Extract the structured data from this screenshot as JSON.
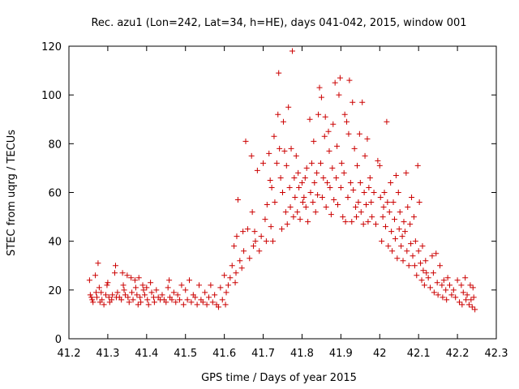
{
  "chart_data": {
    "type": "scatter",
    "title": "Rec. azu1 (Lon=242, Lat=34, h=HE), days 041-042, 2015, window 001",
    "xlabel": "GPS time / Days of year 2015",
    "ylabel": "STEC from uqrg / TECUs",
    "xlim": [
      41.2,
      42.3
    ],
    "ylim": [
      0,
      120
    ],
    "xticks": [
      "41.2",
      "41.3",
      "41.4",
      "41.5",
      "41.6",
      "41.7",
      "41.8",
      "41.9",
      "42",
      "42.1",
      "42.2",
      "42.3"
    ],
    "xtick_values": [
      41.2,
      41.3,
      41.4,
      41.5,
      41.6,
      41.7,
      41.8,
      41.9,
      42.0,
      42.1,
      42.2,
      42.3
    ],
    "yticks": [
      "0",
      "20",
      "40",
      "60",
      "80",
      "100",
      "120"
    ],
    "ytick_values": [
      0,
      20,
      40,
      60,
      80,
      100,
      120
    ],
    "grid": false,
    "marker": "+",
    "color": "#cc0000",
    "series": [
      {
        "points": [
          [
            41.253,
            24
          ],
          [
            41.255,
            18
          ],
          [
            41.258,
            17
          ],
          [
            41.26,
            16
          ],
          [
            41.262,
            15
          ],
          [
            41.268,
            26
          ],
          [
            41.27,
            19
          ],
          [
            41.272,
            17
          ],
          [
            41.275,
            31
          ],
          [
            41.278,
            21
          ],
          [
            41.28,
            15
          ],
          [
            41.283,
            19
          ],
          [
            41.285,
            16
          ],
          [
            41.29,
            14
          ],
          [
            41.295,
            18
          ],
          [
            41.298,
            22
          ],
          [
            41.3,
            23
          ],
          [
            41.303,
            17
          ],
          [
            41.305,
            15
          ],
          [
            41.31,
            16
          ],
          [
            41.312,
            18
          ],
          [
            41.318,
            27
          ],
          [
            41.32,
            30
          ],
          [
            41.322,
            17
          ],
          [
            41.325,
            19
          ],
          [
            41.33,
            17
          ],
          [
            41.335,
            16
          ],
          [
            41.338,
            27
          ],
          [
            41.34,
            22
          ],
          [
            41.342,
            20
          ],
          [
            41.345,
            18
          ],
          [
            41.35,
            26
          ],
          [
            41.352,
            17
          ],
          [
            41.355,
            15
          ],
          [
            41.36,
            25
          ],
          [
            41.362,
            19
          ],
          [
            41.365,
            16
          ],
          [
            41.37,
            24
          ],
          [
            41.372,
            21
          ],
          [
            41.375,
            18
          ],
          [
            41.378,
            14
          ],
          [
            41.38,
            25
          ],
          [
            41.383,
            17
          ],
          [
            41.385,
            15
          ],
          [
            41.39,
            22
          ],
          [
            41.392,
            20
          ],
          [
            41.395,
            18
          ],
          [
            41.4,
            21
          ],
          [
            41.402,
            16
          ],
          [
            41.405,
            14
          ],
          [
            41.41,
            23
          ],
          [
            41.413,
            19
          ],
          [
            41.418,
            17
          ],
          [
            41.42,
            15
          ],
          [
            41.425,
            20
          ],
          [
            41.43,
            17
          ],
          [
            41.435,
            16
          ],
          [
            41.44,
            18
          ],
          [
            41.445,
            16
          ],
          [
            41.45,
            15
          ],
          [
            41.455,
            21
          ],
          [
            41.458,
            24
          ],
          [
            41.46,
            17
          ],
          [
            41.465,
            16
          ],
          [
            41.47,
            19
          ],
          [
            41.475,
            15
          ],
          [
            41.48,
            18
          ],
          [
            41.485,
            16
          ],
          [
            41.49,
            22
          ],
          [
            41.495,
            14
          ],
          [
            41.5,
            20
          ],
          [
            41.505,
            16
          ],
          [
            41.51,
            24
          ],
          [
            41.515,
            15
          ],
          [
            41.52,
            18
          ],
          [
            41.525,
            17
          ],
          [
            41.53,
            14
          ],
          [
            41.535,
            22
          ],
          [
            41.54,
            16
          ],
          [
            41.545,
            15
          ],
          [
            41.55,
            19
          ],
          [
            41.555,
            14
          ],
          [
            41.56,
            17
          ],
          [
            41.565,
            22
          ],
          [
            41.57,
            15
          ],
          [
            41.575,
            18
          ],
          [
            41.58,
            14
          ],
          [
            41.585,
            13
          ],
          [
            41.59,
            21
          ],
          [
            41.595,
            16
          ],
          [
            41.6,
            26
          ],
          [
            41.603,
            14
          ],
          [
            41.605,
            19
          ],
          [
            41.61,
            22
          ],
          [
            41.615,
            25
          ],
          [
            41.62,
            30
          ],
          [
            41.625,
            38
          ],
          [
            41.628,
            23
          ],
          [
            41.63,
            27
          ],
          [
            41.632,
            42
          ],
          [
            41.635,
            57
          ],
          [
            41.64,
            32
          ],
          [
            41.645,
            29
          ],
          [
            41.648,
            44
          ],
          [
            41.65,
            36
          ],
          [
            41.655,
            81
          ],
          [
            41.66,
            45
          ],
          [
            41.665,
            33
          ],
          [
            41.67,
            75
          ],
          [
            41.672,
            52
          ],
          [
            41.675,
            38
          ],
          [
            41.678,
            44
          ],
          [
            41.68,
            40
          ],
          [
            41.685,
            69
          ],
          [
            41.69,
            36
          ],
          [
            41.695,
            42
          ],
          [
            41.7,
            72
          ],
          [
            41.705,
            49
          ],
          [
            41.708,
            40
          ],
          [
            41.71,
            55
          ],
          [
            41.715,
            76
          ],
          [
            41.718,
            65
          ],
          [
            41.72,
            46
          ],
          [
            41.722,
            62
          ],
          [
            41.725,
            40
          ],
          [
            41.728,
            83
          ],
          [
            41.73,
            56
          ],
          [
            41.735,
            72
          ],
          [
            41.738,
            92
          ],
          [
            41.74,
            109
          ],
          [
            41.742,
            78
          ],
          [
            41.745,
            66
          ],
          [
            41.748,
            45
          ],
          [
            41.75,
            60
          ],
          [
            41.752,
            89
          ],
          [
            41.755,
            77
          ],
          [
            41.758,
            52
          ],
          [
            41.76,
            71
          ],
          [
            41.762,
            47
          ],
          [
            41.765,
            95
          ],
          [
            41.768,
            62
          ],
          [
            41.77,
            54
          ],
          [
            41.772,
            78
          ],
          [
            41.775,
            118
          ],
          [
            41.778,
            50
          ],
          [
            41.78,
            66
          ],
          [
            41.782,
            58
          ],
          [
            41.785,
            75
          ],
          [
            41.788,
            52
          ],
          [
            41.79,
            68
          ],
          [
            41.792,
            62
          ],
          [
            41.795,
            49
          ],
          [
            41.8,
            64
          ],
          [
            41.802,
            56
          ],
          [
            41.805,
            58
          ],
          [
            41.808,
            66
          ],
          [
            41.81,
            54
          ],
          [
            41.812,
            70
          ],
          [
            41.815,
            48
          ],
          [
            41.82,
            90
          ],
          [
            41.822,
            60
          ],
          [
            41.825,
            72
          ],
          [
            41.828,
            56
          ],
          [
            41.83,
            81
          ],
          [
            41.832,
            64
          ],
          [
            41.835,
            52
          ],
          [
            41.838,
            68
          ],
          [
            41.84,
            59
          ],
          [
            41.842,
            92
          ],
          [
            41.845,
            103
          ],
          [
            41.848,
            72
          ],
          [
            41.85,
            99
          ],
          [
            41.852,
            58
          ],
          [
            41.855,
            66
          ],
          [
            41.858,
            83
          ],
          [
            41.86,
            91
          ],
          [
            41.862,
            54
          ],
          [
            41.865,
            64
          ],
          [
            41.868,
            85
          ],
          [
            41.87,
            77
          ],
          [
            41.872,
            62
          ],
          [
            41.875,
            51
          ],
          [
            41.878,
            70
          ],
          [
            41.88,
            88
          ],
          [
            41.882,
            57
          ],
          [
            41.885,
            105
          ],
          [
            41.888,
            66
          ],
          [
            41.89,
            79
          ],
          [
            41.892,
            55
          ],
          [
            41.895,
            100
          ],
          [
            41.898,
            107
          ],
          [
            41.9,
            62
          ],
          [
            41.902,
            72
          ],
          [
            41.905,
            50
          ],
          [
            41.908,
            68
          ],
          [
            41.91,
            92
          ],
          [
            41.912,
            48
          ],
          [
            41.915,
            89
          ],
          [
            41.918,
            58
          ],
          [
            41.92,
            84
          ],
          [
            41.922,
            106
          ],
          [
            41.925,
            64
          ],
          [
            41.928,
            48
          ],
          [
            41.93,
            97
          ],
          [
            41.932,
            61
          ],
          [
            41.935,
            78
          ],
          [
            41.938,
            54
          ],
          [
            41.94,
            50
          ],
          [
            41.942,
            71
          ],
          [
            41.945,
            56
          ],
          [
            41.948,
            84
          ],
          [
            41.95,
            64
          ],
          [
            41.952,
            52
          ],
          [
            41.955,
            97
          ],
          [
            41.958,
            47
          ],
          [
            41.96,
            60
          ],
          [
            41.962,
            75
          ],
          [
            41.965,
            55
          ],
          [
            41.968,
            82
          ],
          [
            41.97,
            48
          ],
          [
            41.972,
            62
          ],
          [
            41.975,
            66
          ],
          [
            41.978,
            56
          ],
          [
            41.98,
            50
          ],
          [
            41.985,
            60
          ],
          [
            41.99,
            47
          ],
          [
            41.995,
            73
          ],
          [
            42.0,
            71
          ],
          [
            42.002,
            58
          ],
          [
            42.005,
            40
          ],
          [
            42.008,
            50
          ],
          [
            42.01,
            54
          ],
          [
            42.012,
            60
          ],
          [
            42.015,
            46
          ],
          [
            42.018,
            89
          ],
          [
            42.02,
            56
          ],
          [
            42.022,
            38
          ],
          [
            42.025,
            52
          ],
          [
            42.028,
            64
          ],
          [
            42.03,
            44
          ],
          [
            42.032,
            36
          ],
          [
            42.035,
            56
          ],
          [
            42.038,
            49
          ],
          [
            42.04,
            41
          ],
          [
            42.042,
            67
          ],
          [
            42.045,
            33
          ],
          [
            42.048,
            60
          ],
          [
            42.05,
            45
          ],
          [
            42.052,
            52
          ],
          [
            42.055,
            38
          ],
          [
            42.058,
            42
          ],
          [
            42.06,
            32
          ],
          [
            42.062,
            48
          ],
          [
            42.065,
            44
          ],
          [
            42.068,
            68
          ],
          [
            42.07,
            36
          ],
          [
            42.072,
            54
          ],
          [
            42.075,
            30
          ],
          [
            42.078,
            47
          ],
          [
            42.08,
            39
          ],
          [
            42.082,
            58
          ],
          [
            42.085,
            34
          ],
          [
            42.088,
            50
          ],
          [
            42.09,
            30
          ],
          [
            42.092,
            40
          ],
          [
            42.095,
            26
          ],
          [
            42.098,
            71
          ],
          [
            42.1,
            36
          ],
          [
            42.102,
            56
          ],
          [
            42.105,
            31
          ],
          [
            42.108,
            24
          ],
          [
            42.11,
            38
          ],
          [
            42.112,
            28
          ],
          [
            42.115,
            22
          ],
          [
            42.118,
            32
          ],
          [
            42.12,
            27
          ],
          [
            42.125,
            25
          ],
          [
            42.13,
            21
          ],
          [
            42.135,
            34
          ],
          [
            42.138,
            27
          ],
          [
            42.14,
            19
          ],
          [
            42.145,
            35
          ],
          [
            42.148,
            23
          ],
          [
            42.15,
            18
          ],
          [
            42.155,
            30
          ],
          [
            42.16,
            22
          ],
          [
            42.162,
            17
          ],
          [
            42.165,
            24
          ],
          [
            42.17,
            20
          ],
          [
            42.172,
            16
          ],
          [
            42.175,
            25
          ],
          [
            42.18,
            22
          ],
          [
            42.185,
            18
          ],
          [
            42.19,
            20
          ],
          [
            42.195,
            17
          ],
          [
            42.2,
            24
          ],
          [
            42.205,
            15
          ],
          [
            42.21,
            22
          ],
          [
            42.212,
            14
          ],
          [
            42.215,
            19
          ],
          [
            42.22,
            25
          ],
          [
            42.222,
            16
          ],
          [
            42.225,
            18
          ],
          [
            42.23,
            14
          ],
          [
            42.233,
            22
          ],
          [
            42.235,
            16
          ],
          [
            42.238,
            13
          ],
          [
            42.24,
            21
          ],
          [
            42.242,
            17
          ],
          [
            42.245,
            12
          ]
        ]
      }
    ]
  }
}
